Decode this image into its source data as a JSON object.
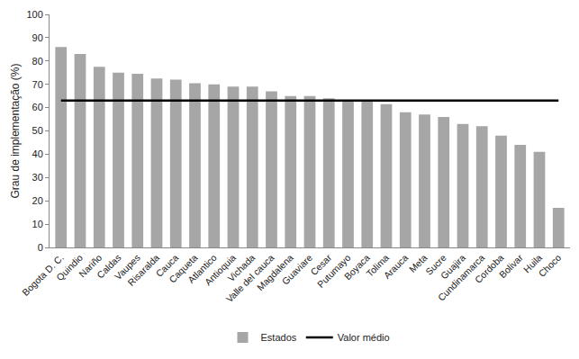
{
  "chart_data": {
    "type": "bar",
    "y_label": "Grau de implementação (%)",
    "categories": [
      "Bogota D. C.",
      "Quindio",
      "Nariño",
      "Caldas",
      "Vaupes",
      "Risaralda",
      "Cauca",
      "Caqueta",
      "Atlantico",
      "Antioquia",
      "Vichada",
      "Valle del cauca",
      "Magdalena",
      "Guaviare",
      "Cesar",
      "Putumayo",
      "Boyaca",
      "Tolima",
      "Arauca",
      "Meta",
      "Sucre",
      "Guajira",
      "Cundinamarca",
      "Cordoba",
      "Bolivar",
      "Huila",
      "Choco"
    ],
    "series": [
      {
        "name": "Estados",
        "type": "bar",
        "color": "#a6a6a6",
        "values": [
          86,
          83,
          77.5,
          75,
          74.5,
          72.5,
          72,
          70.5,
          70,
          69,
          69,
          67,
          65,
          65,
          64,
          63,
          63,
          61.5,
          58,
          57,
          56,
          53,
          52,
          48,
          44,
          41,
          17
        ]
      },
      {
        "name": "Valor médio",
        "type": "line",
        "color": "#000000",
        "line_style": "solid",
        "values": [
          63,
          63,
          63,
          63,
          63,
          63,
          63,
          63,
          63,
          63,
          63,
          63,
          63,
          63,
          63,
          63,
          63,
          63,
          63,
          63,
          63,
          63,
          63,
          63,
          63,
          63,
          63
        ]
      }
    ],
    "ylim": [
      0,
      100
    ],
    "yticks": [
      0,
      10,
      20,
      30,
      40,
      50,
      60,
      70,
      80,
      90,
      100
    ],
    "grid": false,
    "legend": "bottom"
  }
}
